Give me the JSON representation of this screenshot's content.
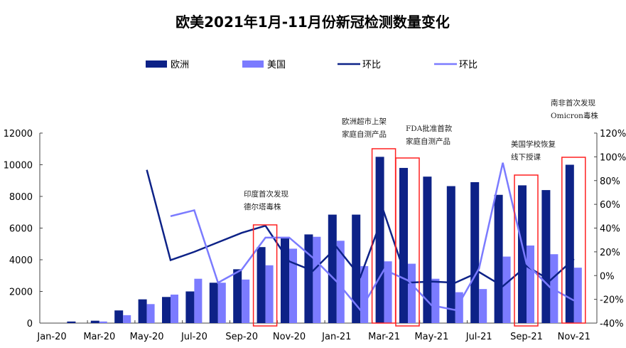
{
  "chart_data": {
    "type": "bar",
    "title": "欧美2021年1月-11月份新冠检测数量变化",
    "categories": [
      "Jan-20",
      "Feb-20",
      "Mar-20",
      "Apr-20",
      "May-20",
      "Jun-20",
      "Jul-20",
      "Aug-20",
      "Sep-20",
      "Oct-20",
      "Nov-20",
      "Dec-20",
      "Jan-21",
      "Feb-21",
      "Mar-21",
      "Apr-21",
      "May-21",
      "Jun-21",
      "Jul-21",
      "Aug-21",
      "Sep-21",
      "Oct-21",
      "Nov-21"
    ],
    "x_tick_labels": [
      "Jan-20",
      "Mar-20",
      "May-20",
      "Jul-20",
      "Sep-20",
      "Nov-20",
      "Jan-21",
      "Mar-21",
      "May-21",
      "Jul-21",
      "Sep-21",
      "Nov-21"
    ],
    "y_left": {
      "range": [
        0,
        12000
      ],
      "ticks": [
        "0",
        "2000",
        "4000",
        "6000",
        "8000",
        "10000",
        "12000"
      ]
    },
    "y_right": {
      "range": [
        -40,
        120
      ],
      "ticks": [
        "-40%",
        "-20%",
        "0%",
        "20%",
        "40%",
        "60%",
        "80%",
        "100%",
        "120%"
      ]
    },
    "grid": false,
    "legend_placement": "top",
    "series": [
      {
        "name": "欧洲",
        "kind": "bar",
        "axis": "left",
        "color": "#0d2287",
        "values": [
          0,
          100,
          150,
          800,
          1500,
          1650,
          2000,
          2550,
          3400,
          4800,
          5350,
          5600,
          6850,
          6850,
          10500,
          9800,
          9250,
          8650,
          8900,
          8100,
          8700,
          8400,
          10000
        ]
      },
      {
        "name": "美国",
        "kind": "bar",
        "axis": "left",
        "color": "#7b7bff",
        "values": [
          0,
          0,
          100,
          500,
          1200,
          1800,
          2800,
          2550,
          2750,
          3650,
          4700,
          5450,
          5200,
          3600,
          3900,
          3750,
          2800,
          1950,
          2150,
          4200,
          4900,
          4350,
          3500
        ]
      },
      {
        "name": "环比",
        "kind": "line",
        "axis": "right",
        "color": "#0d2287",
        "values": [
          null,
          null,
          null,
          null,
          89,
          13,
          20,
          28,
          36,
          42,
          12,
          4,
          24,
          -1,
          53,
          -6,
          -5,
          -6,
          3,
          -9,
          8,
          -4,
          14
        ]
      },
      {
        "name": "环比",
        "kind": "line",
        "axis": "right",
        "color": "#7b7bff",
        "values": [
          null,
          null,
          null,
          null,
          null,
          50,
          55,
          -6,
          5,
          32,
          32,
          15,
          -5,
          -29,
          5,
          -4,
          -25,
          -29,
          6,
          95,
          10,
          -10,
          -21
        ]
      }
    ],
    "highlight_color": "#ff2020",
    "annotations": [
      {
        "category": "Oct-20",
        "lines": [
          "印度首次发现",
          "德尔塔毒株"
        ]
      },
      {
        "category": "Mar-21",
        "lines": [
          "欧洲超市上架",
          "家庭自测产品"
        ]
      },
      {
        "category": "Apr-21",
        "lines": [
          "FDA批准首款",
          "家庭自测产品"
        ]
      },
      {
        "category": "Sep-21",
        "lines": [
          "美国学校恢复",
          "线下授课"
        ]
      },
      {
        "category": "Nov-21",
        "lines": [
          "南非首次发现",
          "Omicron毒株"
        ]
      }
    ]
  }
}
